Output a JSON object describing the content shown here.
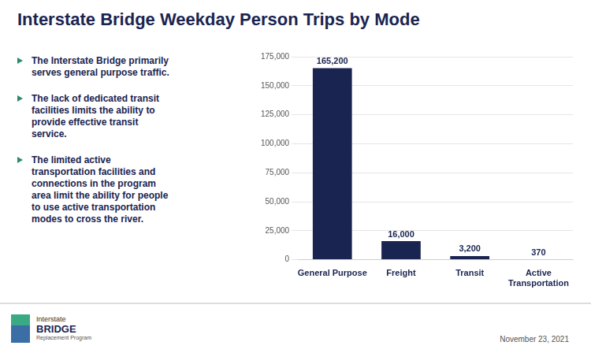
{
  "chart_data": {
    "type": "bar",
    "title": "Interstate Bridge Weekday Person Trips by Mode",
    "categories": [
      "General Purpose",
      "Freight",
      "Transit",
      "Active\nTransportation"
    ],
    "values": [
      165200,
      16000,
      3200,
      370
    ],
    "value_labels": [
      "165,200",
      "16,000",
      "3,200",
      "370"
    ],
    "data_labels": true,
    "color": "#1a2450",
    "ylim": [
      0,
      175000
    ],
    "yticks": [
      0,
      {
        "value": 25000,
        "label": "25,000"
      },
      {
        "value": 50000,
        "label": "50,000"
      },
      {
        "value": 75000,
        "label": "75,000"
      },
      {
        "value": 100000,
        "label": "100,000"
      },
      {
        "value": 125000,
        "label": "125,000"
      },
      {
        "value": 150000,
        "label": "150,000"
      },
      {
        "value": 175000,
        "label": "175,000"
      }
    ],
    "grid": true,
    "annotations": [
      "The Interstate Bridge primarily\nserves general purpose traffic.",
      "The lack of dedicated transit\nfacilities limits the ability to\nprovide effective transit\nservice.",
      "The limited active\ntransportation facilities and\nconnections in the program\narea limit the ability for people\nto use active transportation\nmodes to cross the river.",
      "November 23, 2021",
      "Interstate",
      "BRIDGE",
      "Replacement Program"
    ]
  }
}
